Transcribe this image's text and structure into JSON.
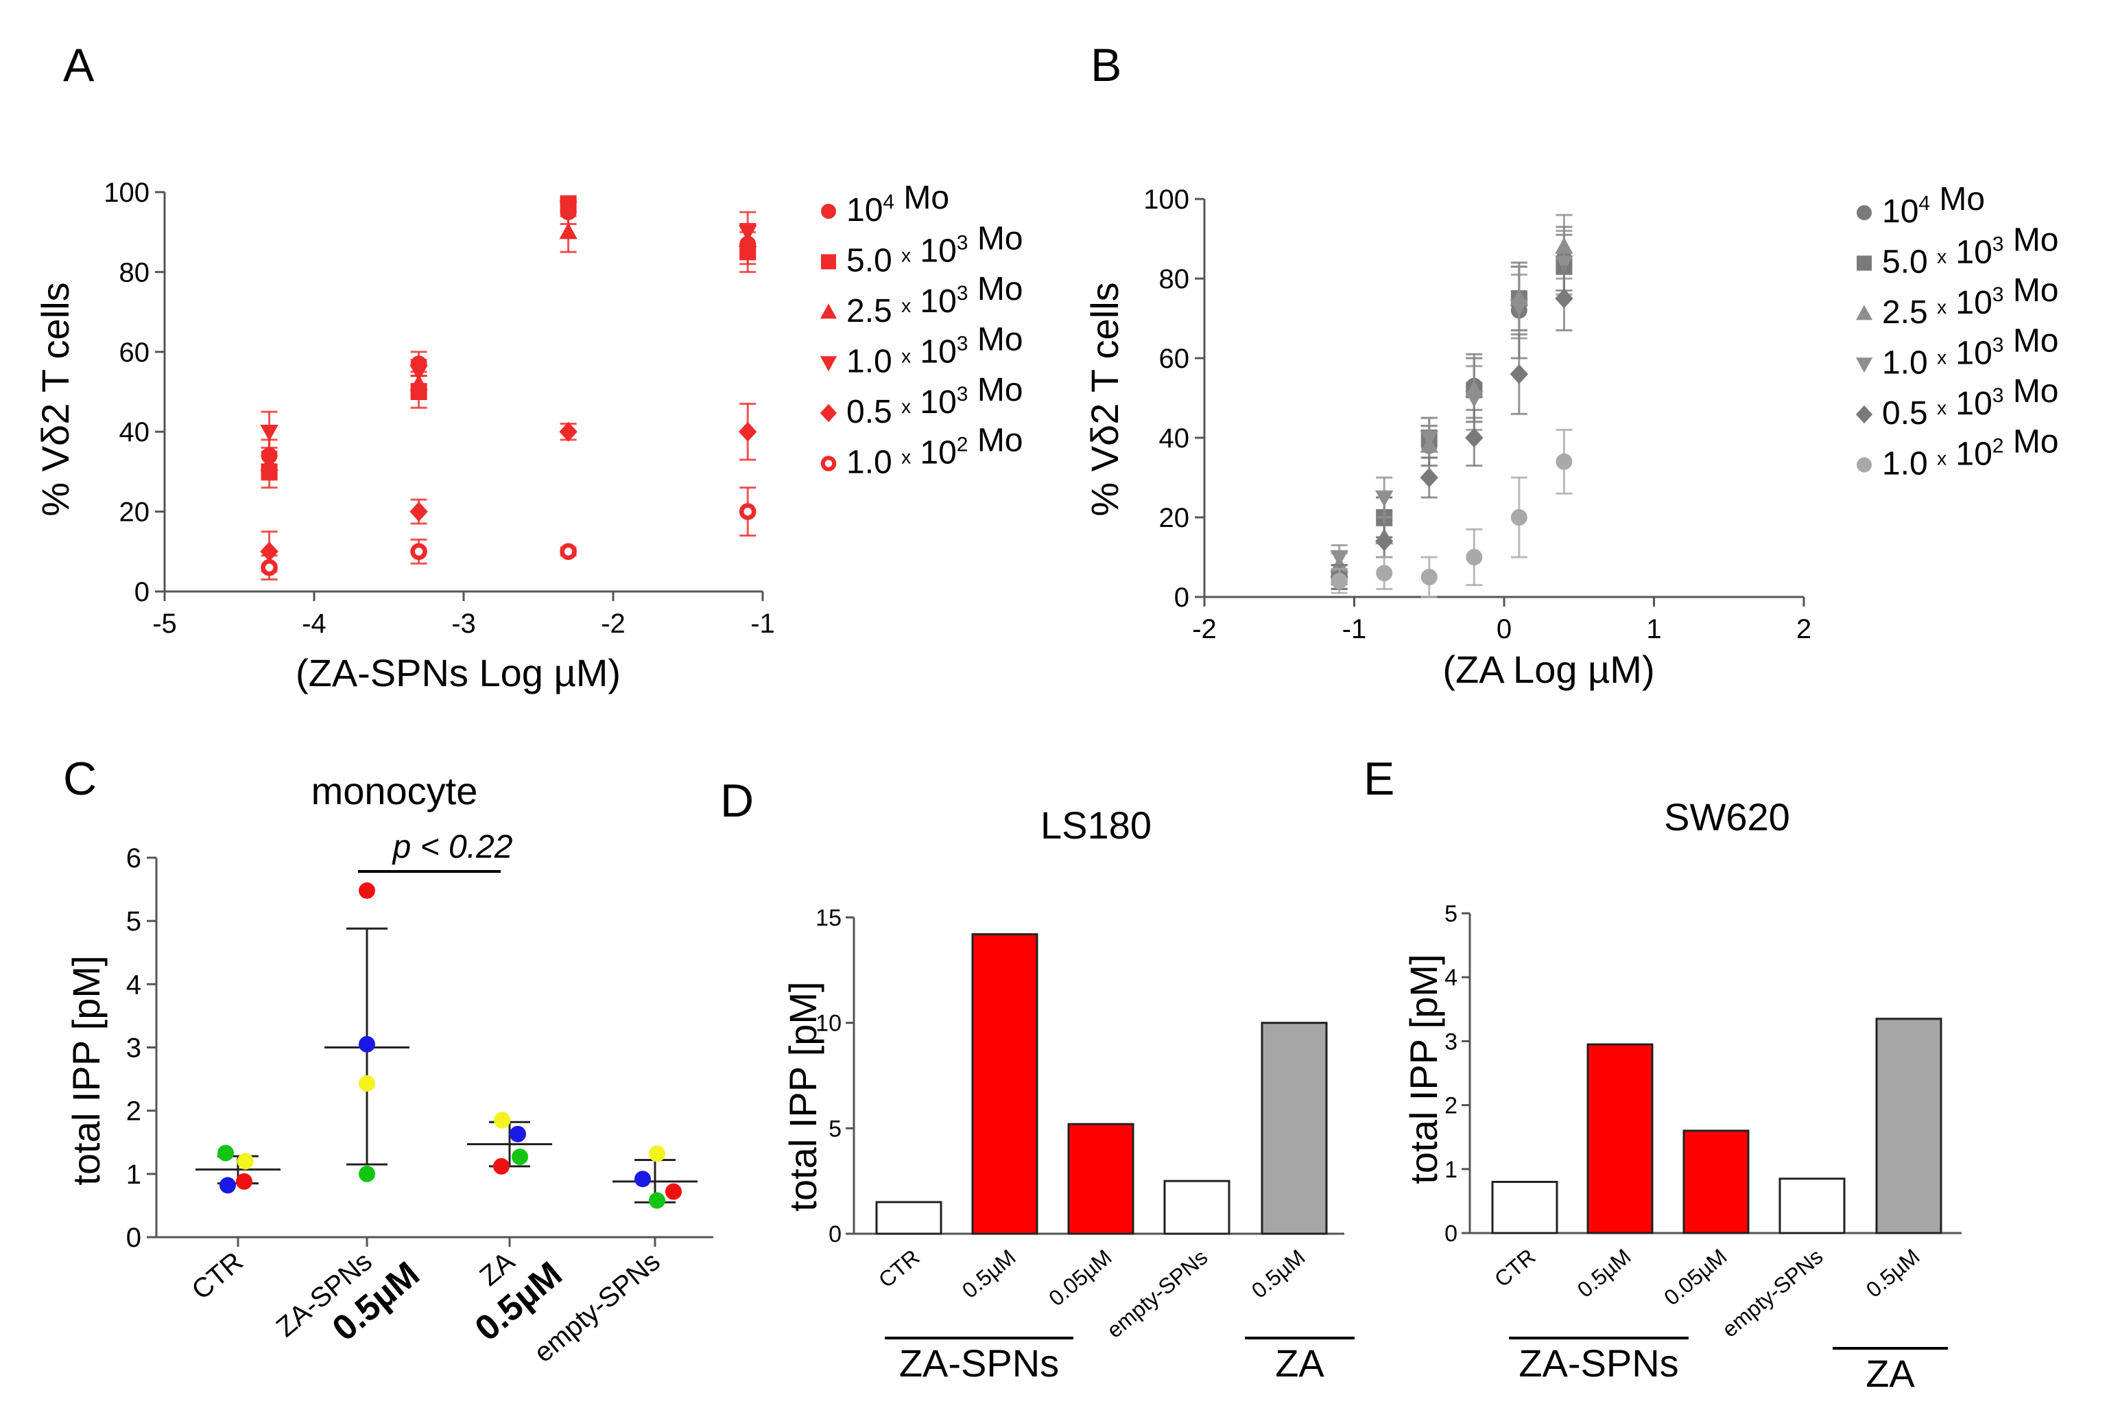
{
  "colors": {
    "red": "#ee2a2a",
    "light_red": "#f06b6b",
    "gray_dark": "#7a7a7a",
    "gray_mid": "#8f8f8f",
    "gray_light": "#a9a9a9",
    "bar_red": "#ff0000",
    "bar_gray": "#a6a6a6",
    "dot_green": "#14c414",
    "dot_blue": "#1a1ae6",
    "dot_red": "#ee1111",
    "dot_yellow": "#f3f320"
  },
  "chart_data": [
    {
      "panel": "A",
      "type": "scatter",
      "xlabel": "(ZA-SPNs  Log µM)",
      "ylabel": "% Vδ2 T cells",
      "xlim": [
        -5,
        -1
      ],
      "ylim": [
        0,
        100
      ],
      "xticks": [
        "-5",
        "-4",
        "-3",
        "-2",
        "-1"
      ],
      "yticks": [
        "0",
        "20",
        "40",
        "60",
        "80",
        "100"
      ],
      "legend": [
        {
          "name": "10<sup>4</sup> Mo",
          "base": "10",
          "sup": "4",
          "tail": " Mo",
          "marker": "circle"
        },
        {
          "name": "5.0 x 10^3 Mo",
          "base": "5.0 ",
          "x": "x",
          "mid": " 10",
          "sup": "3",
          "tail": " Mo",
          "marker": "square"
        },
        {
          "name": "2.5 x 10^3 Mo",
          "base": "2.5 ",
          "x": "x",
          "mid": " 10",
          "sup": "3",
          "tail": " Mo",
          "marker": "triangle"
        },
        {
          "name": "1.0 x 10^3 Mo",
          "base": "1.0 ",
          "x": "x",
          "mid": " 10",
          "sup": "3",
          "tail": " Mo",
          "marker": "triangle-down"
        },
        {
          "name": "0.5 x 10^3 Mo",
          "base": "0.5 ",
          "x": "x",
          "mid": " 10",
          "sup": "3",
          "tail": " Mo",
          "marker": "diamond"
        },
        {
          "name": "1.0 x 10^2 Mo",
          "base": "1.0 ",
          "x": "x",
          "mid": " 10",
          "sup": "2",
          "tail": " Mo",
          "marker": "ring"
        }
      ],
      "series": [
        {
          "name": "10^4 Mo",
          "marker": "circle",
          "x": [
            -4.3,
            -3.3,
            -2.3,
            -1.1
          ],
          "y": [
            34,
            57,
            95,
            87
          ],
          "err": [
            4,
            3,
            3,
            5
          ]
        },
        {
          "name": "5.0 x 10^3 Mo",
          "marker": "square",
          "x": [
            -4.3,
            -3.3,
            -2.3,
            -1.1
          ],
          "y": [
            30,
            50,
            97,
            85
          ],
          "err": [
            4,
            4,
            2,
            5
          ]
        },
        {
          "name": "2.5 x 10^3 Mo",
          "marker": "triangle",
          "x": [
            -4.3,
            -3.3,
            -2.3,
            -1.1
          ],
          "y": [
            32,
            52,
            90,
            88
          ],
          "err": [
            4,
            3,
            5,
            4
          ]
        },
        {
          "name": "1.0 x 10^3 Mo",
          "marker": "triangle-down",
          "x": [
            -4.3,
            -3.3,
            -2.3,
            -1.1
          ],
          "y": [
            40,
            55,
            96,
            90
          ],
          "err": [
            5,
            3,
            2,
            5
          ]
        },
        {
          "name": "0.5 x 10^3 Mo",
          "marker": "diamond",
          "x": [
            -4.3,
            -3.3,
            -2.3,
            -1.1
          ],
          "y": [
            10,
            20,
            40,
            40
          ],
          "err": [
            5,
            3,
            2,
            7
          ]
        },
        {
          "name": "1.0 x 10^2 Mo",
          "marker": "ring",
          "x": [
            -4.3,
            -3.3,
            -2.3,
            -1.1
          ],
          "y": [
            6,
            10,
            10,
            20
          ],
          "err": [
            3,
            3,
            1,
            6
          ]
        }
      ]
    },
    {
      "panel": "B",
      "type": "scatter",
      "xlabel": "(ZA   Log µM)",
      "ylabel": "% Vδ2 T cells",
      "xlim": [
        -2,
        2
      ],
      "ylim": [
        0,
        100
      ],
      "xticks": [
        "-2",
        "-1",
        "0",
        "1",
        "2"
      ],
      "yticks": [
        "0",
        "20",
        "40",
        "60",
        "80",
        "100"
      ],
      "legend": [
        {
          "name": "10^4 Mo",
          "base": "10",
          "sup": "4",
          "tail": " Mo",
          "marker": "circle"
        },
        {
          "name": "5.0 x 10^3 Mo",
          "base": "5.0 ",
          "x": "x",
          "mid": " 10",
          "sup": "3",
          "tail": " Mo",
          "marker": "square"
        },
        {
          "name": "2.5 x 10^3 Mo",
          "base": "2.5 ",
          "x": "x",
          "mid": " 10",
          "sup": "3",
          "tail": " Mo",
          "marker": "triangle"
        },
        {
          "name": "1.0 x 10^3 Mo",
          "base": "1.0 ",
          "x": "x",
          "mid": " 10",
          "sup": "3",
          "tail": " Mo",
          "marker": "triangle-down"
        },
        {
          "name": "0.5 x 10^3 Mo",
          "base": "0.5 ",
          "x": "x",
          "mid": " 10",
          "sup": "3",
          "tail": " Mo",
          "marker": "diamond"
        },
        {
          "name": "1.0 x 10^2 Mo",
          "base": "1.0 ",
          "x": "x",
          "mid": " 10",
          "sup": "2",
          "tail": " Mo",
          "marker": "circle-light"
        }
      ],
      "series": [
        {
          "name": "10^4 Mo",
          "marker": "circle",
          "x": [
            -1.1,
            -0.8,
            -0.5,
            -0.2,
            0.1,
            0.4
          ],
          "y": [
            5,
            20,
            38,
            53,
            72,
            85
          ],
          "err": [
            3,
            5,
            5,
            8,
            12,
            8
          ]
        },
        {
          "name": "5.0 x 10^3 Mo",
          "marker": "square",
          "x": [
            -1.1,
            -0.8,
            -0.5,
            -0.2,
            0.1,
            0.4
          ],
          "y": [
            5,
            20,
            40,
            52,
            75,
            83
          ],
          "err": [
            3,
            5,
            5,
            8,
            8,
            8
          ]
        },
        {
          "name": "2.5 x 10^3 Mo",
          "marker": "triangle",
          "x": [
            -1.1,
            -0.8,
            -0.5,
            -0.2,
            0.1,
            0.4
          ],
          "y": [
            8,
            15,
            38,
            52,
            75,
            88
          ],
          "err": [
            3,
            5,
            5,
            8,
            8,
            8
          ]
        },
        {
          "name": "1.0 x 10^3 Mo",
          "marker": "triangle-down",
          "x": [
            -1.1,
            -0.8,
            -0.5,
            -0.2,
            0.1,
            0.4
          ],
          "y": [
            10,
            25,
            40,
            50,
            73,
            84
          ],
          "err": [
            3,
            5,
            5,
            8,
            8,
            8
          ]
        },
        {
          "name": "0.5 x 10^3 Mo",
          "marker": "diamond",
          "x": [
            -1.1,
            -0.8,
            -0.5,
            -0.2,
            0.1,
            0.4
          ],
          "y": [
            5,
            14,
            30,
            40,
            56,
            75
          ],
          "err": [
            3,
            4,
            5,
            7,
            10,
            8
          ]
        },
        {
          "name": "1.0 x 10^2 Mo",
          "marker": "circle-light",
          "x": [
            -1.1,
            -0.8,
            -0.5,
            -0.2,
            0.1,
            0.4
          ],
          "y": [
            4,
            6,
            5,
            10,
            20,
            34
          ],
          "err": [
            3,
            4,
            5,
            7,
            10,
            8
          ]
        }
      ]
    },
    {
      "panel": "C",
      "type": "scatter",
      "title": "monocyte",
      "ylabel": "total IPP [pM]",
      "ylim": [
        0,
        6
      ],
      "yticks": [
        "0",
        "1",
        "2",
        "3",
        "4",
        "5",
        "6"
      ],
      "categories": [
        "CTR",
        "ZA-SPNs",
        "ZA",
        "empty-SPNs"
      ],
      "category_sublabels": [
        "",
        "0.5µM",
        "0.5µM",
        ""
      ],
      "annotation": "p < 0.22",
      "groups": [
        {
          "category": "CTR",
          "mean": 1.07,
          "sd_low": 0.85,
          "sd_high": 1.28,
          "points": [
            {
              "color": "dot_green",
              "value": 1.33,
              "dx": -0.3
            },
            {
              "color": "dot_yellow",
              "value": 1.2,
              "dx": 0.18
            },
            {
              "color": "dot_blue",
              "value": 0.82,
              "dx": -0.25
            },
            {
              "color": "dot_red",
              "value": 0.88,
              "dx": 0.15
            }
          ]
        },
        {
          "category": "ZA-SPNs",
          "mean": 3.0,
          "sd_low": 1.15,
          "sd_high": 4.88,
          "points": [
            {
              "color": "dot_red",
              "value": 5.48,
              "dx": 0
            },
            {
              "color": "dot_blue",
              "value": 3.05,
              "dx": 0
            },
            {
              "color": "dot_yellow",
              "value": 2.43,
              "dx": 0
            },
            {
              "color": "dot_green",
              "value": 1.0,
              "dx": 0
            }
          ]
        },
        {
          "category": "ZA",
          "mean": 1.47,
          "sd_low": 1.12,
          "sd_high": 1.82,
          "points": [
            {
              "color": "dot_yellow",
              "value": 1.85,
              "dx": -0.18
            },
            {
              "color": "dot_blue",
              "value": 1.63,
              "dx": 0.2
            },
            {
              "color": "dot_green",
              "value": 1.27,
              "dx": 0.25
            },
            {
              "color": "dot_red",
              "value": 1.12,
              "dx": -0.2
            }
          ]
        },
        {
          "category": "empty-SPNs",
          "mean": 0.88,
          "sd_low": 0.55,
          "sd_high": 1.22,
          "points": [
            {
              "color": "dot_yellow",
              "value": 1.32,
              "dx": 0.05
            },
            {
              "color": "dot_blue",
              "value": 0.92,
              "dx": -0.3
            },
            {
              "color": "dot_red",
              "value": 0.72,
              "dx": 0.45
            },
            {
              "color": "dot_green",
              "value": 0.58,
              "dx": 0.05
            }
          ]
        }
      ]
    },
    {
      "panel": "D",
      "type": "bar",
      "title": "LS180",
      "ylabel": "total IPP [pM]",
      "ylim": [
        0,
        15
      ],
      "yticks": [
        "0",
        "5",
        "10",
        "15"
      ],
      "categories": [
        "CTR",
        "0.5µM",
        "0.05µM",
        "empty-SPNs",
        "0.5µM"
      ],
      "values": [
        1.5,
        14.2,
        5.2,
        2.5,
        10.0
      ],
      "fills": [
        "white",
        "bar_red",
        "bar_red",
        "white",
        "bar_gray"
      ],
      "groups": [
        {
          "label": "ZA-SPNs",
          "from": 0,
          "to": 2
        },
        {
          "label": "ZA",
          "from": 4,
          "to": 4
        }
      ]
    },
    {
      "panel": "E",
      "type": "bar",
      "title": "SW620",
      "ylabel": "total IPP [pM]",
      "ylim": [
        0,
        5
      ],
      "yticks": [
        "0",
        "1",
        "2",
        "3",
        "4",
        "5"
      ],
      "categories": [
        "CTR",
        "0.5µM",
        "0.05µM",
        "empty-SPNs",
        "0.5µM"
      ],
      "values": [
        0.8,
        2.95,
        1.6,
        0.85,
        3.35
      ],
      "fills": [
        "white",
        "bar_red",
        "bar_red",
        "white",
        "bar_gray"
      ],
      "groups": [
        {
          "label": "ZA-SPNs",
          "from": 0,
          "to": 2
        },
        {
          "label": "ZA",
          "from": 4,
          "to": 4
        }
      ]
    }
  ]
}
